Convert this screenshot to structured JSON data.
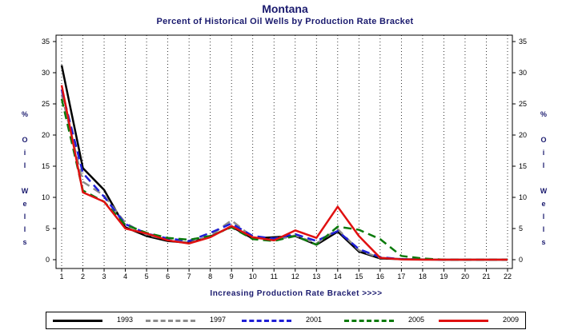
{
  "title": "Montana",
  "subtitle": "Percent of Historical Oil Wells by Production Rate Bracket",
  "chart_data": {
    "type": "line",
    "title": "Montana",
    "subtitle": "Percent of Historical Oil Wells by Production Rate Bracket",
    "xlabel": "Increasing Production Rate Bracket >>>>",
    "ylabel": "% Oil Wells",
    "x": [
      1,
      2,
      3,
      4,
      5,
      6,
      7,
      8,
      9,
      10,
      11,
      12,
      13,
      14,
      15,
      16,
      17,
      18,
      19,
      20,
      21,
      22
    ],
    "xlim": [
      1,
      22
    ],
    "ylim": [
      0,
      35
    ],
    "yticks": [
      0,
      5,
      10,
      15,
      20,
      25,
      30,
      35
    ],
    "grid": true,
    "legend": "bottom",
    "series": [
      {
        "name": "1993",
        "color": "#000000",
        "dash": "solid",
        "values": [
          31.2,
          14.7,
          11.2,
          5.2,
          3.8,
          3.0,
          2.7,
          3.7,
          5.3,
          3.4,
          3.6,
          3.8,
          2.4,
          4.5,
          1.3,
          0.2,
          0.1,
          0.05,
          0.0,
          0.0,
          0.0,
          0.0
        ]
      },
      {
        "name": "1997",
        "color": "#8c8c8c",
        "dash": "dashed",
        "values": [
          26.5,
          12.5,
          10.3,
          5.9,
          4.0,
          3.2,
          2.6,
          3.9,
          6.3,
          3.6,
          3.1,
          3.9,
          2.6,
          4.9,
          1.5,
          0.3,
          0.1,
          0.05,
          0.0,
          0.0,
          0.0,
          0.0
        ]
      },
      {
        "name": "2001",
        "color": "#1f1fd6",
        "dash": "dashed",
        "values": [
          27.3,
          13.9,
          10.1,
          5.7,
          4.2,
          3.4,
          3.0,
          4.3,
          5.8,
          3.8,
          3.4,
          4.1,
          3.0,
          4.6,
          1.7,
          0.4,
          0.1,
          0.05,
          0.0,
          0.0,
          0.0,
          0.0
        ]
      },
      {
        "name": "2005",
        "color": "#0b7a0b",
        "dash": "dashed",
        "values": [
          25.8,
          11.1,
          9.3,
          5.6,
          4.3,
          3.5,
          3.2,
          3.8,
          5.2,
          3.3,
          3.0,
          3.8,
          2.4,
          5.3,
          4.8,
          3.3,
          0.6,
          0.2,
          0.0,
          0.0,
          0.0,
          0.0
        ]
      },
      {
        "name": "2009",
        "color": "#e01010",
        "dash": "solid",
        "values": [
          28.0,
          10.8,
          9.3,
          5.0,
          4.2,
          3.1,
          2.6,
          3.6,
          5.4,
          3.6,
          3.1,
          4.7,
          3.5,
          8.5,
          3.8,
          0.3,
          0.05,
          0.0,
          0.0,
          0.0,
          0.0,
          0.0
        ]
      }
    ]
  }
}
